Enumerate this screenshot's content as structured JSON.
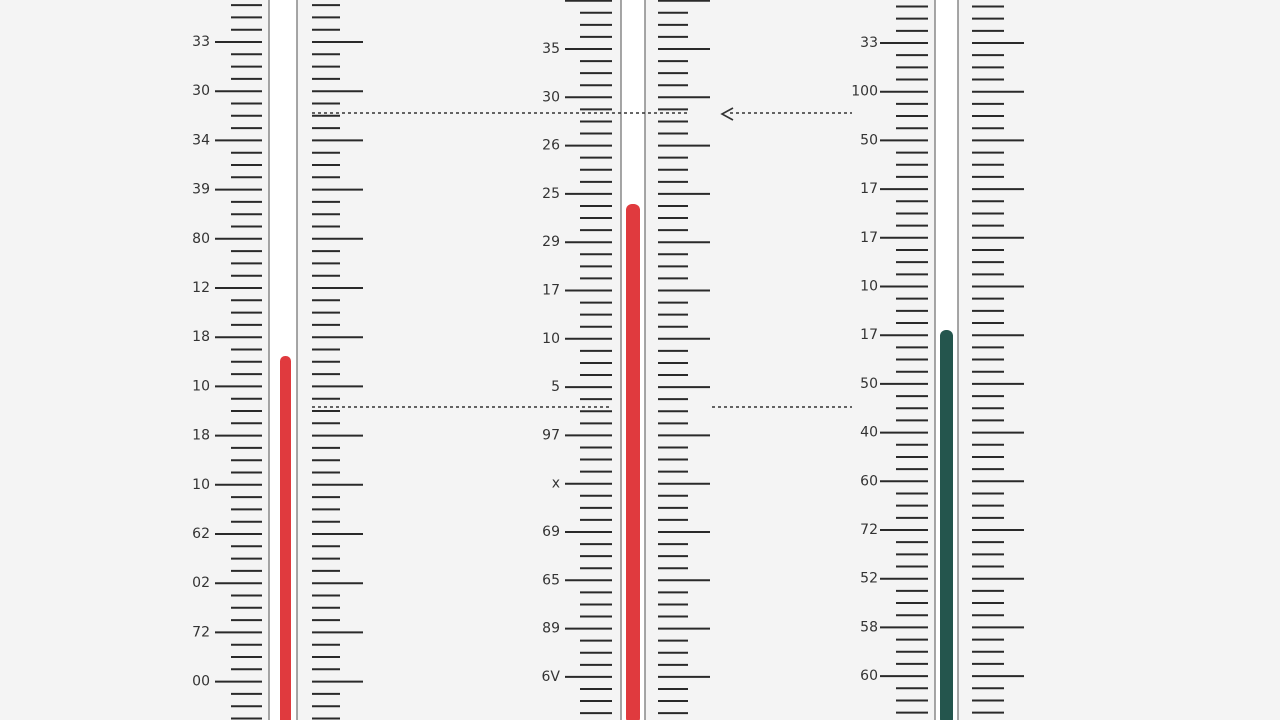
{
  "thermometers": [
    {
      "labels": [
        "33",
        "30",
        "34",
        "39",
        "80",
        "12",
        "18",
        "10",
        "18",
        "10",
        "62",
        "02",
        "72",
        "00"
      ]
    },
    {
      "labels": [
        "35",
        "30",
        "26",
        "25",
        "29",
        "17",
        "10",
        "5",
        "97",
        "x",
        "69",
        "65",
        "89",
        "6V"
      ]
    },
    {
      "labels": [
        "33",
        "100",
        "50",
        "17",
        "17",
        "10",
        "17",
        "50",
        "40",
        "60",
        "72",
        "52",
        "58",
        "60"
      ]
    }
  ]
}
